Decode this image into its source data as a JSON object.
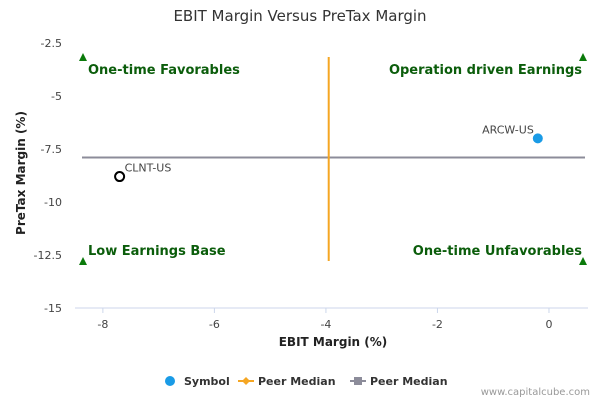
{
  "chart_data": {
    "type": "scatter",
    "title": "EBIT Margin Versus PreTax Margin",
    "xlabel": "EBIT Margin (%)",
    "ylabel": "PreTax Margin (%)",
    "xlim": [
      -8.5,
      0.7
    ],
    "ylim": [
      -15,
      -2.5
    ],
    "x_ticks": [
      -8,
      -6,
      -4,
      -2,
      0
    ],
    "x_tick_labels": [
      "-8",
      "-6",
      "-4",
      "-2",
      "0"
    ],
    "y_ticks": [
      -2.5,
      -5,
      -7.5,
      -10,
      -12.5,
      -15
    ],
    "y_tick_labels": [
      "-2.5",
      "-5",
      "-7.5",
      "-10",
      "-12.5",
      "-15"
    ],
    "grid": false,
    "points": [
      {
        "label": "ARCW-US",
        "x": -0.2,
        "y": -7.0,
        "role": "symbol"
      },
      {
        "label": "CLNT-US",
        "x": -7.7,
        "y": -8.8,
        "role": "peer"
      }
    ],
    "peer_median_x": -3.95,
    "peer_median_y": -7.9,
    "quadrant_labels": {
      "top_left": "One-time Favorables",
      "top_right": "Operation driven Earnings",
      "bottom_left": "Low Earnings Base",
      "bottom_right": "One-time Unfavorables"
    },
    "legend": [
      {
        "label": "Symbol",
        "marker": "circle",
        "color": "#1a9be6"
      },
      {
        "label": "Peer Median",
        "marker": "diamond-line",
        "color": "#f5a623"
      },
      {
        "label": "Peer Median",
        "marker": "square-line",
        "color": "#8c8c9a"
      }
    ],
    "legend_position": "bottom"
  },
  "credit": "www.capitalcube.com",
  "colors": {
    "symbol": "#1a9be6",
    "peer_marker": "#000000",
    "median_x_line": "#f5a623",
    "median_y_line": "#8c8c9a",
    "quadrant_text": "#0b5d0b",
    "triangle": "#0b7a0b"
  }
}
